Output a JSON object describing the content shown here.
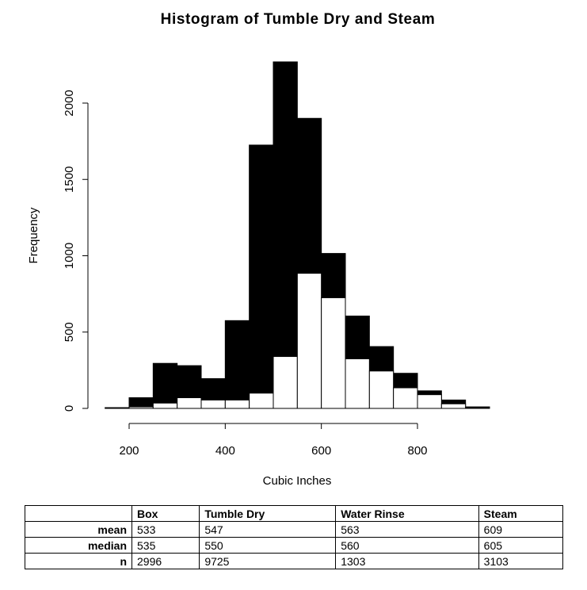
{
  "chart_data": {
    "type": "bar",
    "title": "Histogram of Tumble Dry and Steam",
    "xlabel": "Cubic Inches",
    "ylabel": "Frequency",
    "xlim": [
      150,
      950
    ],
    "ylim": [
      0,
      2300
    ],
    "x_ticks": [
      200,
      400,
      600,
      800
    ],
    "y_ticks": [
      0,
      500,
      1000,
      1500,
      2000
    ],
    "bin_edges": [
      150,
      200,
      250,
      300,
      350,
      400,
      450,
      500,
      550,
      600,
      650,
      700,
      750,
      800,
      850,
      900,
      950
    ],
    "series": [
      {
        "name": "Tumble Dry",
        "fill": "#000000",
        "values": [
          5,
          70,
          295,
          280,
          195,
          575,
          1725,
          2270,
          1900,
          1015,
          605,
          405,
          230,
          115,
          55,
          10
        ]
      },
      {
        "name": "Steam",
        "fill": "#ffffff",
        "values": [
          0,
          10,
          35,
          70,
          55,
          55,
          100,
          340,
          885,
          725,
          325,
          245,
          135,
          90,
          30,
          5
        ]
      }
    ],
    "grid": false,
    "legend": "none"
  },
  "table": {
    "columns": [
      "",
      "Box",
      "Tumble Dry",
      "Water Rinse",
      "Steam"
    ],
    "rows": [
      {
        "label": "mean",
        "cells": [
          "533",
          "547",
          "563",
          "609"
        ]
      },
      {
        "label": "median",
        "cells": [
          "535",
          "550",
          "560",
          "605"
        ]
      },
      {
        "label": "n",
        "cells": [
          "2996",
          "9725",
          "1303",
          "3103"
        ]
      }
    ]
  }
}
